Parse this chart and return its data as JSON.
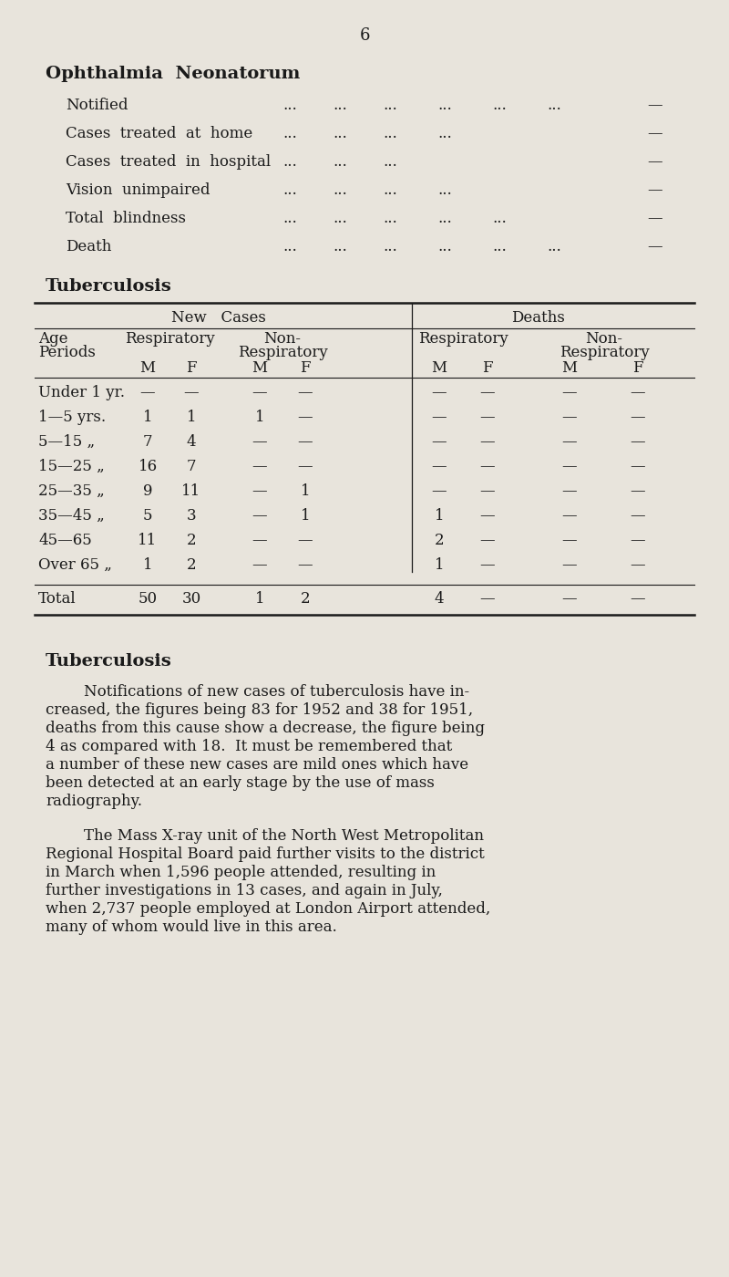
{
  "page_number": "6",
  "bg_color": "#e8e4dc",
  "text_color": "#1a1a1a",
  "section1_title": "Ophthalmia  Neonatorum",
  "ophthalmia_items": [
    "Notified",
    "Cases  treated  at  home",
    "Cases  treated  in  hospital",
    "Vision  unimpaired",
    "Total  blindness",
    "Death"
  ],
  "ophthalmia_dots": [
    [
      "...",
      "...",
      "...",
      "...",
      "...",
      "..."
    ],
    [
      "...",
      "...",
      "...",
      "..."
    ],
    [
      "...",
      "...",
      "..."
    ],
    [
      "...",
      "...",
      "...",
      "..."
    ],
    [
      "...",
      "...",
      "...",
      "...",
      "..."
    ],
    [
      "...",
      "...",
      "...",
      "...",
      "...",
      "..."
    ]
  ],
  "section2_title": "Tuberculosis",
  "table_data": [
    [
      "Under 1 yr.",
      "—",
      "—",
      "—",
      "—",
      "—",
      "—",
      "—",
      "—"
    ],
    [
      "1—5 yrs.",
      "1",
      "1",
      "1",
      "—",
      "—",
      "—",
      "—",
      "—"
    ],
    [
      "5—15 „",
      "7",
      "4",
      "—",
      "—",
      "—",
      "—",
      "—",
      "—"
    ],
    [
      "15—25 „",
      "16",
      "7",
      "—",
      "—",
      "—",
      "—",
      "—",
      "—"
    ],
    [
      "25—35 „",
      "9",
      "11",
      "—",
      "1",
      "—",
      "—",
      "—",
      "—"
    ],
    [
      "35—45 „",
      "5",
      "3",
      "—",
      "1",
      "1",
      "—",
      "—",
      "—"
    ],
    [
      "45—65",
      "11",
      "2",
      "—",
      "—",
      "2",
      "—",
      "—",
      "—"
    ],
    [
      "Over 65 „",
      "1",
      "2",
      "—",
      "—",
      "1",
      "—",
      "—",
      "—"
    ]
  ],
  "table_total": [
    "Total",
    "50",
    "30",
    "1",
    "2",
    "4",
    "—",
    "—",
    "—"
  ],
  "section3_title": "Tuberculosis",
  "paragraph1_lines": [
    "        Notifications of new cases of tuberculosis have in-",
    "creased, the figures being 83 for 1952 and 38 for 1951,",
    "deaths from this cause show a decrease, the figure being",
    "4 as compared with 18.  It must be remembered that",
    "a number of these new cases are mild ones which have",
    "been detected at an early stage by the use of mass",
    "radiography."
  ],
  "paragraph2_lines": [
    "        The Mass X-ray unit of the North West Metropolitan",
    "Regional Hospital Board paid further visits to the district",
    "in March when 1,596 people attended, resulting in",
    "further investigations in 13 cases, and again in July,",
    "when 2,737 people employed at London Airport attended,",
    "many of whom would live in this area."
  ]
}
